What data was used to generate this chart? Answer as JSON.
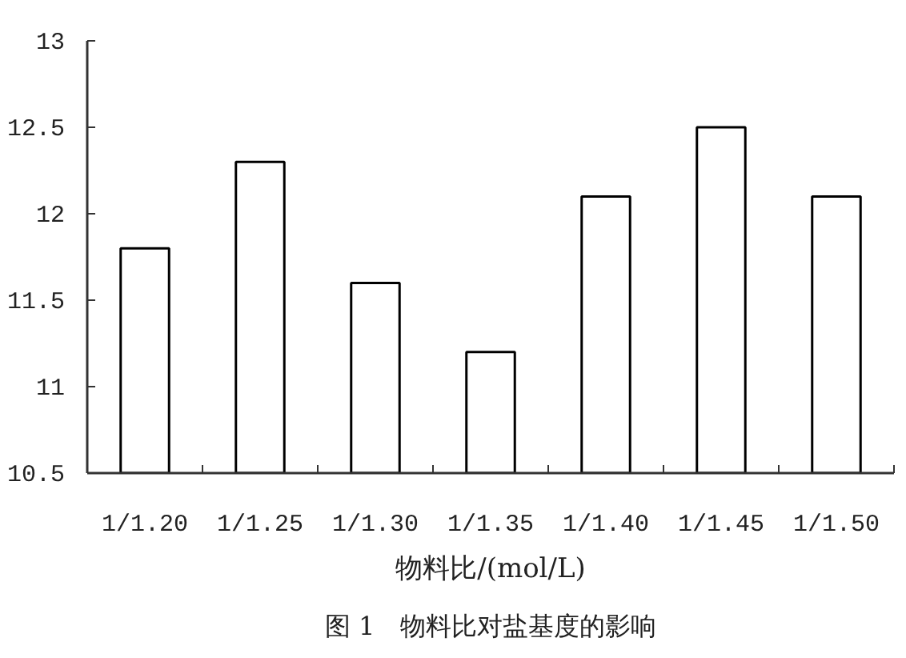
{
  "chart_data": {
    "type": "bar",
    "title": "图 1　物料比对盐基度的影响",
    "xlabel": "物料比/(mol/L)",
    "categories": [
      "1/1.20",
      "1/1.25",
      "1/1.30",
      "1/1.35",
      "1/1.40",
      "1/1.45",
      "1/1.50"
    ],
    "values": [
      11.8,
      12.3,
      11.6,
      11.2,
      12.1,
      12.5,
      12.1
    ],
    "color": "#ffffff",
    "ylim": [
      10.5,
      13
    ],
    "yticks": [
      10.5,
      11,
      11.5,
      12,
      12.5,
      13
    ],
    "grid": false
  }
}
